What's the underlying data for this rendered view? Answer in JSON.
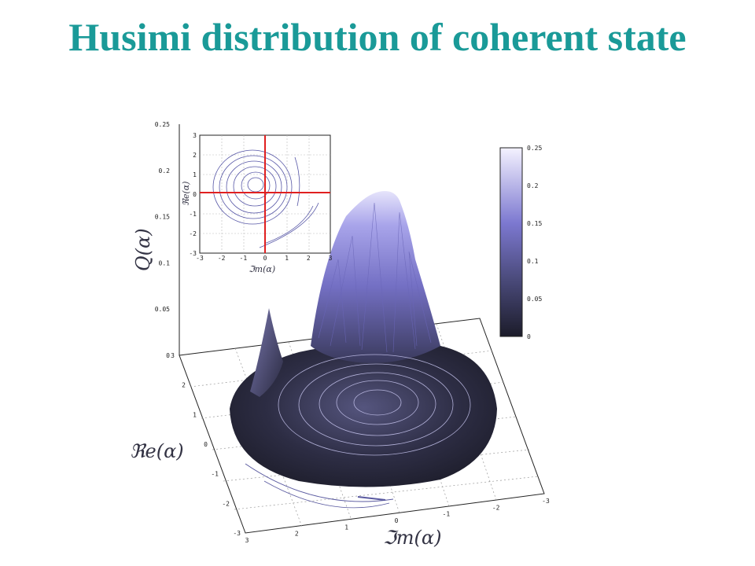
{
  "title": "Husimi distribution of coherent state",
  "chart_data": {
    "type": "surface",
    "z_axis": {
      "label": "Q(α)",
      "ticks": [
        "0.25",
        "0.2",
        "0.15",
        "0.1",
        "0.05",
        "0"
      ],
      "range": [
        0,
        0.25
      ]
    },
    "x_axis": {
      "label": "ℑm(α)",
      "ticks": [
        "3",
        "2",
        "1",
        "0",
        "-1",
        "-2",
        "-3"
      ],
      "range": [
        -3,
        3
      ]
    },
    "y_axis": {
      "label": "ℜe(α)",
      "ticks": [
        "3",
        "2",
        "1",
        "0",
        "-1",
        "-2",
        "-3"
      ],
      "range": [
        -3,
        3
      ]
    },
    "peak": {
      "re": 0,
      "im": 0,
      "value": 0.25
    },
    "colorbar": {
      "ticks": [
        "0.25",
        "0.2",
        "0.15",
        "0.1",
        "0.05",
        "0"
      ],
      "low_color": "#1c1c2a",
      "high_color": "#f4f2ff"
    },
    "inset": {
      "type": "contour",
      "xlabel": "ℑm(α)",
      "ylabel": "ℜe(α)",
      "xticks": [
        "-3",
        "-2",
        "-1",
        "0",
        "1",
        "2",
        "3"
      ],
      "yticks": [
        "3",
        "2",
        "1",
        "0",
        "-1",
        "-2",
        "-3"
      ],
      "crosshair_color": "#e02020"
    }
  }
}
